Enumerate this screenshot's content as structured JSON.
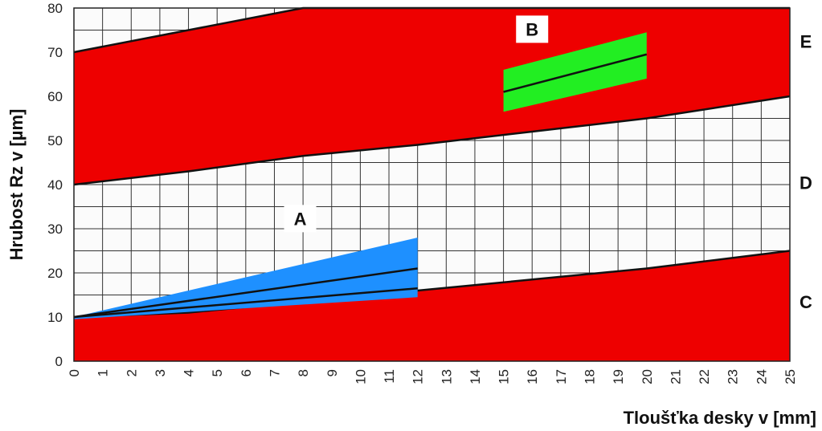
{
  "chart_data": {
    "type": "area",
    "xlabel": "Tloušťka desky v [mm]",
    "ylabel": "Hrubost Rz v [µm]",
    "xlim": [
      0,
      25
    ],
    "ylim": [
      0,
      80
    ],
    "x_ticks": [
      0,
      1,
      2,
      3,
      4,
      5,
      6,
      7,
      8,
      9,
      10,
      11,
      12,
      13,
      14,
      15,
      16,
      17,
      18,
      19,
      20,
      21,
      22,
      23,
      24,
      25
    ],
    "y_ticks": [
      0,
      10,
      20,
      30,
      40,
      50,
      60,
      70,
      80
    ],
    "grid": true,
    "zones": [
      {
        "label": "C",
        "color": "#ee0000",
        "lower": [
          [
            0,
            0
          ],
          [
            25,
            0
          ]
        ],
        "upper": [
          [
            0,
            10
          ],
          [
            4,
            11
          ],
          [
            8,
            13.5
          ],
          [
            12,
            16
          ],
          [
            16,
            18.5
          ],
          [
            20,
            21
          ],
          [
            25,
            25
          ]
        ]
      },
      {
        "label": "D",
        "color": "#ffffff",
        "lower": [
          [
            0,
            10
          ],
          [
            4,
            11
          ],
          [
            8,
            13.5
          ],
          [
            12,
            16
          ],
          [
            16,
            18.5
          ],
          [
            20,
            21
          ],
          [
            25,
            25
          ]
        ],
        "upper": [
          [
            0,
            40
          ],
          [
            4,
            43
          ],
          [
            8,
            46.5
          ],
          [
            12,
            49
          ],
          [
            16,
            52
          ],
          [
            20,
            55
          ],
          [
            25,
            60
          ]
        ]
      },
      {
        "label": "E",
        "color": "#ee0000",
        "lower": [
          [
            0,
            40
          ],
          [
            4,
            43
          ],
          [
            8,
            46.5
          ],
          [
            12,
            49
          ],
          [
            16,
            52
          ],
          [
            20,
            55
          ],
          [
            25,
            60
          ]
        ],
        "upper": [
          [
            0,
            70
          ],
          [
            4,
            75
          ],
          [
            8,
            80
          ],
          [
            25,
            80
          ]
        ]
      }
    ],
    "bands": [
      {
        "label": "A",
        "color": "#1e90ff",
        "polygon": [
          [
            0,
            10
          ],
          [
            12,
            28
          ],
          [
            12,
            14.5
          ],
          [
            0,
            9.5
          ]
        ],
        "lines": [
          [
            [
              0,
              10
            ],
            [
              12,
              21
            ]
          ],
          [
            [
              0,
              10
            ],
            [
              12,
              16.5
            ]
          ]
        ]
      },
      {
        "label": "B",
        "color": "#22ee22",
        "polygon": [
          [
            15,
            56.5
          ],
          [
            15,
            66
          ],
          [
            20,
            74.5
          ],
          [
            20,
            64
          ]
        ],
        "lines": [
          [
            [
              15,
              61
            ],
            [
              20,
              69.5
            ]
          ]
        ]
      }
    ]
  }
}
